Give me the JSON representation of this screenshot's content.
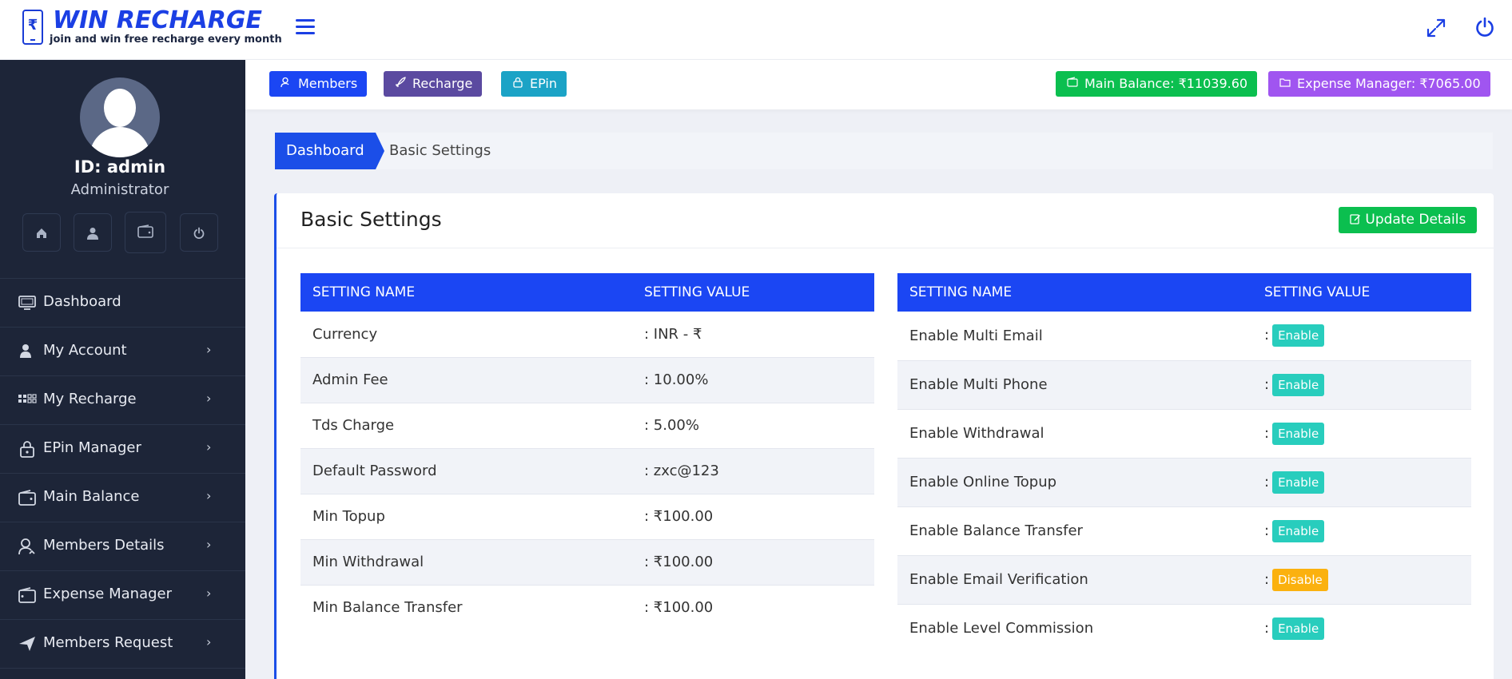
{
  "header": {
    "logo_title": "WIN RECHARGE",
    "logo_tagline": "join and win free recharge every month",
    "logo_symbol": "₹"
  },
  "sidebar": {
    "user_id": "ID: admin",
    "user_role": "Administrator",
    "quick_icons": [
      "home-icon",
      "user-icon",
      "wallet-icon",
      "power-icon"
    ],
    "menu": [
      {
        "label": "Dashboard",
        "icon": "monitor-icon",
        "has_submenu": false
      },
      {
        "label": "My Account",
        "icon": "user-icon",
        "has_submenu": true
      },
      {
        "label": "My Recharge",
        "icon": "grid-icon",
        "has_submenu": true
      },
      {
        "label": "EPin Manager",
        "icon": "lock-icon",
        "has_submenu": true
      },
      {
        "label": "Main Balance",
        "icon": "wallet-icon",
        "has_submenu": true
      },
      {
        "label": "Members Details",
        "icon": "users-icon",
        "has_submenu": true
      },
      {
        "label": "Expense Manager",
        "icon": "wallet-icon",
        "has_submenu": true
      },
      {
        "label": "Members Request",
        "icon": "send-icon",
        "has_submenu": true
      }
    ]
  },
  "actionbar": {
    "members_label": "Members",
    "recharge_label": "Recharge",
    "epin_label": "EPin",
    "main_balance_label": "Main Balance: ₹11039.60",
    "expense_manager_label": "Expense Manager: ₹7065.00"
  },
  "breadcrumb": {
    "home": "Dashboard",
    "current": "Basic Settings"
  },
  "card": {
    "title": "Basic Settings",
    "update_label": "Update Details"
  },
  "left_table": {
    "headers": [
      "SETTING NAME",
      "SETTING VALUE"
    ],
    "rows": [
      {
        "name": "Currency",
        "value": ": INR - ₹"
      },
      {
        "name": "Admin Fee",
        "value": ": 10.00%"
      },
      {
        "name": "Tds Charge",
        "value": ": 5.00%"
      },
      {
        "name": "Default Password",
        "value": ": zxc@123"
      },
      {
        "name": "Min Topup",
        "value": ": ₹100.00"
      },
      {
        "name": "Min Withdrawal",
        "value": ": ₹100.00"
      },
      {
        "name": "Min Balance Transfer",
        "value": ": ₹100.00"
      }
    ]
  },
  "right_table": {
    "headers": [
      "SETTING NAME",
      "SETTING VALUE"
    ],
    "rows": [
      {
        "name": "Enable Multi Email",
        "prefix": ":",
        "status": "Enable"
      },
      {
        "name": "Enable Multi Phone",
        "prefix": ":",
        "status": "Enable"
      },
      {
        "name": "Enable Withdrawal",
        "prefix": ":",
        "status": "Enable"
      },
      {
        "name": "Enable Online Topup",
        "prefix": ":",
        "status": "Enable"
      },
      {
        "name": "Enable Balance Transfer",
        "prefix": ":",
        "status": "Enable"
      },
      {
        "name": "Enable Email Verification",
        "prefix": ":",
        "status": "Disable"
      },
      {
        "name": "Enable Level Commission",
        "prefix": ":",
        "status": "Enable"
      }
    ]
  },
  "colors": {
    "primary": "#1b4ee8",
    "sidebar": "#1d2538",
    "members_btn": "#1b46f3",
    "recharge_btn": "#5b4aa0",
    "epin_btn": "#1ba3c6",
    "main_balance_btn": "#0bbf4f",
    "expense_btn": "#a055f0",
    "enable_badge": "#28cdbd",
    "disable_badge": "#fbb10f"
  }
}
